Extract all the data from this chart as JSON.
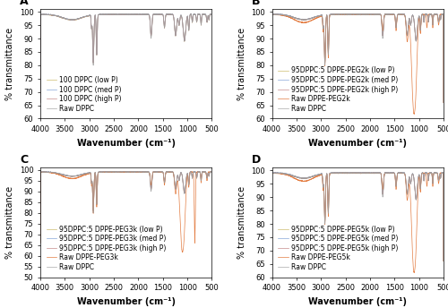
{
  "panels": [
    "A",
    "B",
    "C",
    "D"
  ],
  "x_range": [
    4000,
    500
  ],
  "x_ticks": [
    4000,
    3500,
    3000,
    2500,
    2000,
    1500,
    1000,
    500
  ],
  "xlabel": "Wavenumber (cm⁻¹)",
  "ylabel": "% transmittance",
  "panel_A": {
    "ylim": [
      60,
      101
    ],
    "yticks": [
      60,
      65,
      70,
      75,
      80,
      85,
      90,
      95,
      100
    ],
    "legend": [
      "100 DPPC (low P)",
      "100 DPPC (med P)",
      "100 DPPC (high P)",
      "Raw DPPC"
    ],
    "colors": [
      "#c8b560",
      "#7b9ed4",
      "#c08080",
      "#a0a0a0"
    ]
  },
  "panel_B": {
    "ylim": [
      60,
      101
    ],
    "yticks": [
      60,
      65,
      70,
      75,
      80,
      85,
      90,
      95,
      100
    ],
    "legend": [
      "95DPPC:5 DPPE-PEG2k (low P)",
      "95DPPC:5 DPPE-PEG2k (med P)",
      "95DPPC:5 DPPE-PEG2k (high P)",
      "Raw DPPE-PEG2k",
      "Raw DPPC"
    ],
    "colors": [
      "#c8b560",
      "#7b9ed4",
      "#c08080",
      "#e07030",
      "#a0a0a0"
    ]
  },
  "panel_C": {
    "ylim": [
      50,
      101
    ],
    "yticks": [
      50,
      55,
      60,
      65,
      70,
      75,
      80,
      85,
      90,
      95,
      100
    ],
    "legend": [
      "95DPPC:5 DPPE-PEG3k (low P)",
      "95DPPC:5 DPPE-PEG3k (med P)",
      "95DPPC:5 DPPE-PEG3k (high P)",
      "Raw DPPE-PEG3k",
      "Raw DPPC"
    ],
    "colors": [
      "#c8b560",
      "#7b9ed4",
      "#c08080",
      "#e07030",
      "#a0a0a0"
    ]
  },
  "panel_D": {
    "ylim": [
      60,
      101
    ],
    "yticks": [
      60,
      65,
      70,
      75,
      80,
      85,
      90,
      95,
      100
    ],
    "legend": [
      "95DPPC:5 DPPE-PEG5k (low P)",
      "95DPPC:5 DPPE-PEG5k (med P)",
      "95DPPC:5 DPPE-PEG5k (high P)",
      "Raw DPPE-PEG5k",
      "Raw DPPC"
    ],
    "colors": [
      "#c8b560",
      "#7b9ed4",
      "#c08080",
      "#e07030",
      "#a0a0a0"
    ]
  },
  "bg_color": "#ffffff",
  "legend_fontsize": 5.5,
  "tick_fontsize": 6,
  "label_fontsize": 7,
  "panel_label_fontsize": 9
}
